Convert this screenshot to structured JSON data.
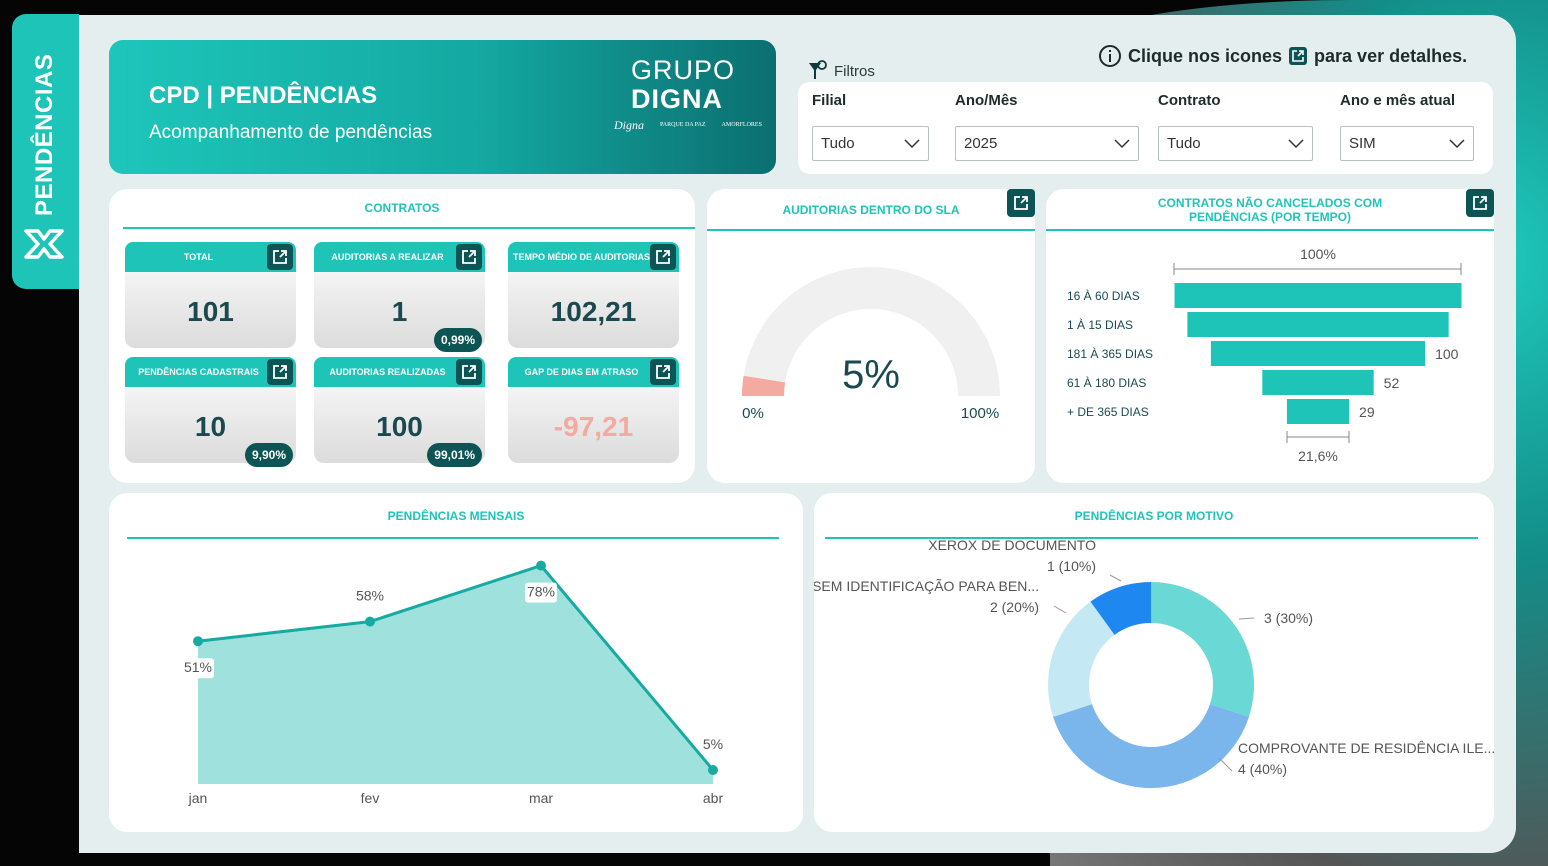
{
  "side": {
    "title": "PENDÊNCIAS"
  },
  "header": {
    "title": "CPD | PENDÊNCIAS",
    "subtitle": "Acompanhamento de pendências",
    "brand_top": "GRUPO",
    "brand_bottom": "DIGNA",
    "sub_brands": [
      "Digna",
      "PARQUE DA PAZ",
      "AMORFLORES"
    ]
  },
  "filters_label": "Filtros",
  "info": {
    "text_before": "Clique nos icones",
    "text_after": "para ver detalhes."
  },
  "filters": [
    {
      "label": "Filial",
      "value": "Tudo"
    },
    {
      "label": "Ano/Mês",
      "value": "2025"
    },
    {
      "label": "Contrato",
      "value": "Tudo"
    },
    {
      "label": "Ano e mês atual",
      "value": "SIM"
    }
  ],
  "contratos": {
    "title": "CONTRATOS",
    "kpis": [
      {
        "label": "TOTAL",
        "value": "101",
        "badge": ""
      },
      {
        "label": "AUDITORIAS A REALIZAR",
        "value": "1",
        "badge": "0,99%"
      },
      {
        "label": "TEMPO MÉDIO DE AUDITORIAS",
        "value": "102,21",
        "badge": ""
      },
      {
        "label": "PENDÊNCIAS CADASTRAIS",
        "value": "10",
        "badge": "9,90%"
      },
      {
        "label": "AUDITORIAS REALIZADAS",
        "value": "100",
        "badge": "99,01%"
      },
      {
        "label": "GAP DE DIAS EM ATRASO",
        "value": "-97,21",
        "badge": ""
      }
    ]
  },
  "sla": {
    "title": "AUDITORIAS DENTRO DO SLA",
    "value": "5%",
    "min": "0%",
    "max": "100%",
    "fraction": 0.05
  },
  "funnel": {
    "title": "CONTRATOS NÃO CANCELADOS COM PENDÊNCIAS (POR TEMPO)",
    "top_label": "100%",
    "bottom_label": "21,6%"
  },
  "monthly": {
    "title": "PENDÊNCIAS MENSAIS"
  },
  "motivo": {
    "title": "PENDÊNCIAS POR MOTIVO"
  },
  "colors": {
    "accent": "#1fc4b8",
    "dark": "#0d5454",
    "negative": "#f4a9a1"
  },
  "chart_data": [
    {
      "type": "bar",
      "title": "CONTRATOS NÃO CANCELADOS COM PENDÊNCIAS (POR TEMPO)",
      "categories": [
        "16 À 60 DIAS",
        "1 À 15 DIAS",
        "181 À 365 DIAS",
        "61 À 180 DIAS",
        "+ DE 365 DIAS"
      ],
      "values": [
        134,
        122,
        100,
        52,
        29
      ],
      "labels": [
        "",
        "",
        "100",
        "52",
        "29"
      ]
    },
    {
      "type": "area",
      "title": "PENDÊNCIAS MENSAIS",
      "categories": [
        "jan",
        "fev",
        "mar",
        "abr"
      ],
      "values": [
        51,
        58,
        78,
        5
      ],
      "labels": [
        "51%",
        "58%",
        "78%",
        "5%"
      ]
    },
    {
      "type": "pie",
      "title": "PENDÊNCIAS POR MOTIVO",
      "slices": [
        {
          "name": "",
          "value": 3,
          "label": "3 (30%)",
          "color": "#6ad9d6"
        },
        {
          "name": "COMPROVANTE DE RESIDÊNCIA ILE...",
          "value": 4,
          "label": "4 (40%)",
          "color": "#7ab6ec"
        },
        {
          "name": "SEM IDENTIFICAÇÃO PARA BEN...",
          "value": 2,
          "label": "2 (20%)",
          "color": "#c4e9f4"
        },
        {
          "name": "XEROX DE DOCUMENTO",
          "value": 1,
          "label": "1 (10%)",
          "color": "#1e88f0"
        }
      ]
    }
  ]
}
